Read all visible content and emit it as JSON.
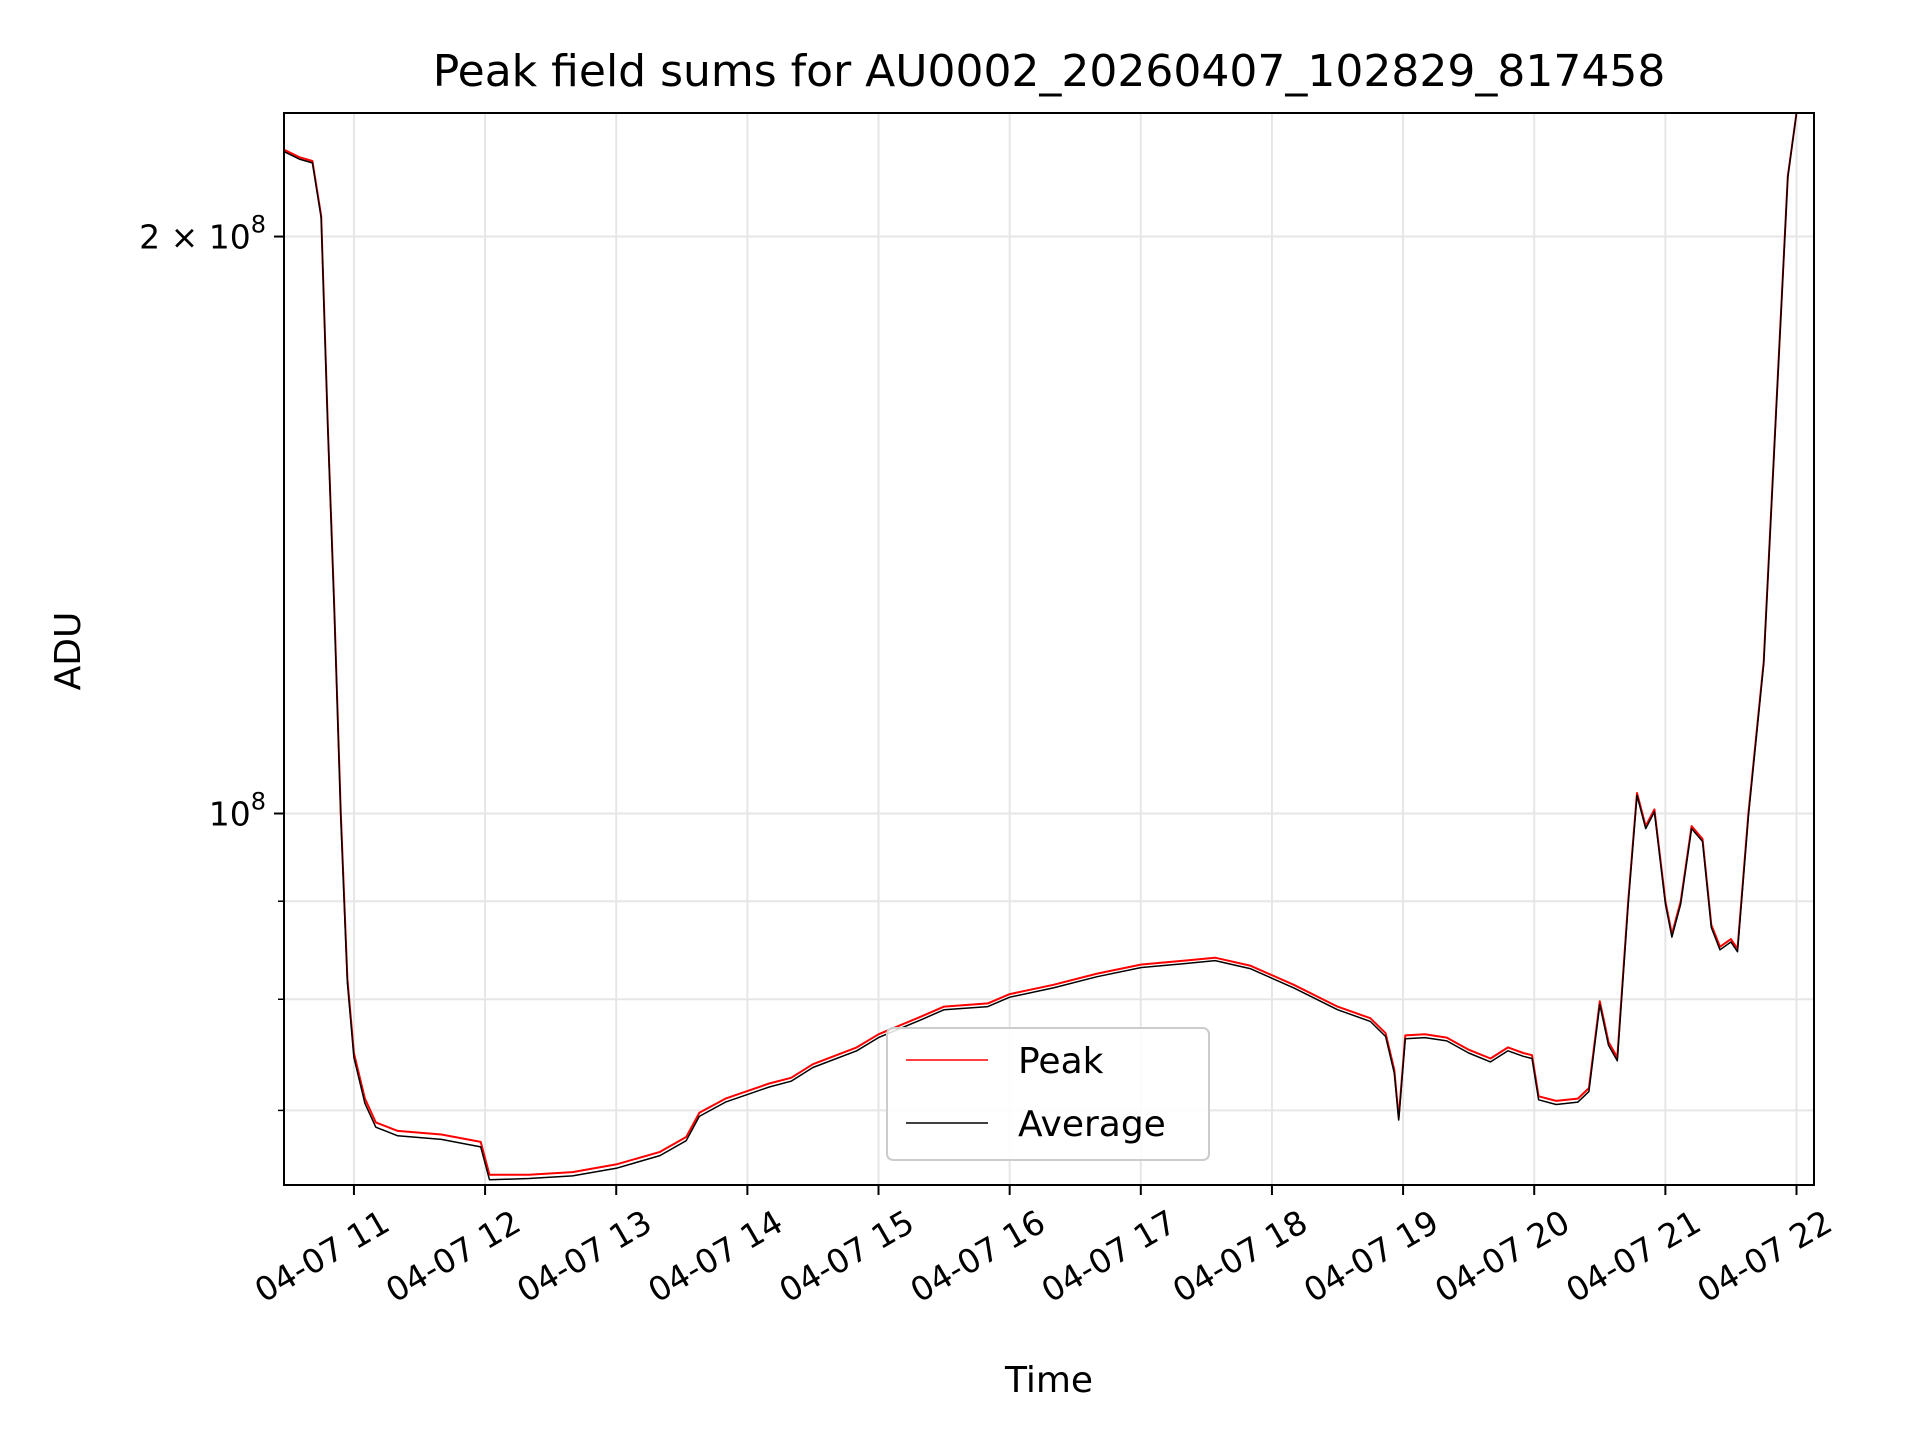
{
  "chart_data": {
    "type": "line",
    "title": "Peak field sums for AU0002_20260407_102829_817458",
    "xlabel": "Time",
    "ylabel": "ADU",
    "y_scale": "log",
    "grid": true,
    "legend_placement": "lower-center",
    "xlim": [
      "2026-04-07 10:28",
      "2026-04-07 22:08"
    ],
    "ylim": [
      64000000,
      232000000
    ],
    "x_ticks": [
      {
        "value": "2026-04-07 11:00",
        "label": "04-07 11"
      },
      {
        "value": "2026-04-07 12:00",
        "label": "04-07 12"
      },
      {
        "value": "2026-04-07 13:00",
        "label": "04-07 13"
      },
      {
        "value": "2026-04-07 14:00",
        "label": "04-07 14"
      },
      {
        "value": "2026-04-07 15:00",
        "label": "04-07 15"
      },
      {
        "value": "2026-04-07 16:00",
        "label": "04-07 16"
      },
      {
        "value": "2026-04-07 17:00",
        "label": "04-07 17"
      },
      {
        "value": "2026-04-07 18:00",
        "label": "04-07 18"
      },
      {
        "value": "2026-04-07 19:00",
        "label": "04-07 19"
      },
      {
        "value": "2026-04-07 20:00",
        "label": "04-07 20"
      },
      {
        "value": "2026-04-07 21:00",
        "label": "04-07 21"
      },
      {
        "value": "2026-04-07 22:00",
        "label": "04-07 22"
      }
    ],
    "y_major_ticks": [
      {
        "value": 100000000,
        "base": "10",
        "exp": "8",
        "mult": ""
      },
      {
        "value": 200000000,
        "base": "10",
        "exp": "8",
        "mult": "2 × "
      }
    ],
    "y_minor_ticks": [
      70000000,
      80000000,
      90000000
    ],
    "series": [
      {
        "name": "Peak",
        "color": "#ff0000",
        "points": [
          [
            "2026-04-07 10:28",
            222000000
          ],
          [
            "2026-04-07 10:35",
            220000000
          ],
          [
            "2026-04-07 10:41",
            219000000
          ],
          [
            "2026-04-07 10:45",
            205000000
          ],
          [
            "2026-04-07 10:48",
            160000000
          ],
          [
            "2026-04-07 10:51",
            128000000
          ],
          [
            "2026-04-07 10:54",
            100000000
          ],
          [
            "2026-04-07 10:57",
            82000000
          ],
          [
            "2026-04-07 11:00",
            75000000
          ],
          [
            "2026-04-07 11:05",
            71000000
          ],
          [
            "2026-04-07 11:10",
            69000000
          ],
          [
            "2026-04-07 11:20",
            68300000
          ],
          [
            "2026-04-07 11:40",
            68000000
          ],
          [
            "2026-04-07 11:58",
            67400000
          ],
          [
            "2026-04-07 12:02",
            64800000
          ],
          [
            "2026-04-07 12:20",
            64800000
          ],
          [
            "2026-04-07 12:40",
            65000000
          ],
          [
            "2026-04-07 13:00",
            65600000
          ],
          [
            "2026-04-07 13:20",
            66600000
          ],
          [
            "2026-04-07 13:32",
            67800000
          ],
          [
            "2026-04-07 13:38",
            69800000
          ],
          [
            "2026-04-07 13:50",
            71000000
          ],
          [
            "2026-04-07 14:10",
            72300000
          ],
          [
            "2026-04-07 14:20",
            72800000
          ],
          [
            "2026-04-07 14:30",
            74000000
          ],
          [
            "2026-04-07 14:50",
            75500000
          ],
          [
            "2026-04-07 15:00",
            76700000
          ],
          [
            "2026-04-07 15:20",
            78400000
          ],
          [
            "2026-04-07 15:30",
            79300000
          ],
          [
            "2026-04-07 15:50",
            79600000
          ],
          [
            "2026-04-07 16:00",
            80500000
          ],
          [
            "2026-04-07 16:20",
            81400000
          ],
          [
            "2026-04-07 16:40",
            82500000
          ],
          [
            "2026-04-07 17:00",
            83400000
          ],
          [
            "2026-04-07 17:20",
            83800000
          ],
          [
            "2026-04-07 17:34",
            84100000
          ],
          [
            "2026-04-07 17:50",
            83300000
          ],
          [
            "2026-04-07 18:10",
            81400000
          ],
          [
            "2026-04-07 18:30",
            79300000
          ],
          [
            "2026-04-07 18:45",
            78200000
          ],
          [
            "2026-04-07 18:52",
            76800000
          ],
          [
            "2026-04-07 18:56",
            73500000
          ],
          [
            "2026-04-07 18:58",
            69400000
          ],
          [
            "2026-04-07 19:01",
            76600000
          ],
          [
            "2026-04-07 19:10",
            76700000
          ],
          [
            "2026-04-07 19:20",
            76400000
          ],
          [
            "2026-04-07 19:30",
            75300000
          ],
          [
            "2026-04-07 19:40",
            74500000
          ],
          [
            "2026-04-07 19:48",
            75500000
          ],
          [
            "2026-04-07 19:55",
            75000000
          ],
          [
            "2026-04-07 19:59",
            74800000
          ],
          [
            "2026-04-07 20:02",
            71200000
          ],
          [
            "2026-04-07 20:10",
            70800000
          ],
          [
            "2026-04-07 20:20",
            71000000
          ],
          [
            "2026-04-07 20:25",
            71900000
          ],
          [
            "2026-04-07 20:30",
            79800000
          ],
          [
            "2026-04-07 20:34",
            76000000
          ],
          [
            "2026-04-07 20:38",
            74600000
          ],
          [
            "2026-04-07 20:43",
            90000000
          ],
          [
            "2026-04-07 20:47",
            102500000
          ],
          [
            "2026-04-07 20:51",
            98500000
          ],
          [
            "2026-04-07 20:55",
            100500000
          ],
          [
            "2026-04-07 21:00",
            90000000
          ],
          [
            "2026-04-07 21:03",
            86500000
          ],
          [
            "2026-04-07 21:07",
            90000000
          ],
          [
            "2026-04-07 21:12",
            98500000
          ],
          [
            "2026-04-07 21:17",
            97000000
          ],
          [
            "2026-04-07 21:21",
            87500000
          ],
          [
            "2026-04-07 21:25",
            85200000
          ],
          [
            "2026-04-07 21:30",
            86000000
          ],
          [
            "2026-04-07 21:33",
            85000000
          ],
          [
            "2026-04-07 21:38",
            100000000
          ],
          [
            "2026-04-07 21:45",
            120000000
          ],
          [
            "2026-04-07 21:51",
            165000000
          ],
          [
            "2026-04-07 21:56",
            215000000
          ],
          [
            "2026-04-07 22:00",
            232000000
          ]
        ]
      },
      {
        "name": "Average",
        "color": "#000000",
        "points": [
          [
            "2026-04-07 10:28",
            221500000
          ],
          [
            "2026-04-07 10:35",
            219500000
          ],
          [
            "2026-04-07 10:41",
            218500000
          ],
          [
            "2026-04-07 10:45",
            204500000
          ],
          [
            "2026-04-07 10:48",
            159500000
          ],
          [
            "2026-04-07 10:51",
            127500000
          ],
          [
            "2026-04-07 10:54",
            99500000
          ],
          [
            "2026-04-07 10:57",
            81600000
          ],
          [
            "2026-04-07 11:00",
            74600000
          ],
          [
            "2026-04-07 11:05",
            70600000
          ],
          [
            "2026-04-07 11:10",
            68600000
          ],
          [
            "2026-04-07 11:20",
            67900000
          ],
          [
            "2026-04-07 11:40",
            67600000
          ],
          [
            "2026-04-07 11:58",
            67000000
          ],
          [
            "2026-04-07 12:02",
            64400000
          ],
          [
            "2026-04-07 12:20",
            64500000
          ],
          [
            "2026-04-07 12:40",
            64700000
          ],
          [
            "2026-04-07 13:00",
            65300000
          ],
          [
            "2026-04-07 13:20",
            66300000
          ],
          [
            "2026-04-07 13:32",
            67500000
          ],
          [
            "2026-04-07 13:38",
            69500000
          ],
          [
            "2026-04-07 13:50",
            70700000
          ],
          [
            "2026-04-07 14:10",
            72000000
          ],
          [
            "2026-04-07 14:20",
            72500000
          ],
          [
            "2026-04-07 14:30",
            73700000
          ],
          [
            "2026-04-07 14:50",
            75200000
          ],
          [
            "2026-04-07 15:00",
            76400000
          ],
          [
            "2026-04-07 15:20",
            78100000
          ],
          [
            "2026-04-07 15:30",
            79000000
          ],
          [
            "2026-04-07 15:50",
            79300000
          ],
          [
            "2026-04-07 16:00",
            80200000
          ],
          [
            "2026-04-07 16:20",
            81100000
          ],
          [
            "2026-04-07 16:40",
            82200000
          ],
          [
            "2026-04-07 17:00",
            83100000
          ],
          [
            "2026-04-07 17:20",
            83500000
          ],
          [
            "2026-04-07 17:34",
            83800000
          ],
          [
            "2026-04-07 17:50",
            83000000
          ],
          [
            "2026-04-07 18:10",
            81100000
          ],
          [
            "2026-04-07 18:30",
            79000000
          ],
          [
            "2026-04-07 18:45",
            77900000
          ],
          [
            "2026-04-07 18:52",
            76500000
          ],
          [
            "2026-04-07 18:56",
            73200000
          ],
          [
            "2026-04-07 18:58",
            69200000
          ],
          [
            "2026-04-07 19:01",
            76300000
          ],
          [
            "2026-04-07 19:10",
            76400000
          ],
          [
            "2026-04-07 19:20",
            76100000
          ],
          [
            "2026-04-07 19:30",
            75000000
          ],
          [
            "2026-04-07 19:40",
            74200000
          ],
          [
            "2026-04-07 19:48",
            75200000
          ],
          [
            "2026-04-07 19:55",
            74700000
          ],
          [
            "2026-04-07 19:59",
            74500000
          ],
          [
            "2026-04-07 20:02",
            70900000
          ],
          [
            "2026-04-07 20:10",
            70500000
          ],
          [
            "2026-04-07 20:20",
            70700000
          ],
          [
            "2026-04-07 20:25",
            71600000
          ],
          [
            "2026-04-07 20:30",
            79500000
          ],
          [
            "2026-04-07 20:34",
            75700000
          ],
          [
            "2026-04-07 20:38",
            74300000
          ],
          [
            "2026-04-07 20:43",
            89700000
          ],
          [
            "2026-04-07 20:47",
            102200000
          ],
          [
            "2026-04-07 20:51",
            98200000
          ],
          [
            "2026-04-07 20:55",
            100200000
          ],
          [
            "2026-04-07 21:00",
            89700000
          ],
          [
            "2026-04-07 21:03",
            86200000
          ],
          [
            "2026-04-07 21:07",
            89700000
          ],
          [
            "2026-04-07 21:12",
            98200000
          ],
          [
            "2026-04-07 21:17",
            96700000
          ],
          [
            "2026-04-07 21:21",
            87200000
          ],
          [
            "2026-04-07 21:25",
            84900000
          ],
          [
            "2026-04-07 21:30",
            85700000
          ],
          [
            "2026-04-07 21:33",
            84700000
          ],
          [
            "2026-04-07 21:38",
            99700000
          ],
          [
            "2026-04-07 21:45",
            119700000
          ],
          [
            "2026-04-07 21:51",
            164700000
          ],
          [
            "2026-04-07 21:56",
            214700000
          ],
          [
            "2026-04-07 22:00",
            232000000
          ]
        ]
      }
    ]
  },
  "colors": {
    "grid": "#e6e6e6",
    "axes": "#000000",
    "legend_border": "#cccccc",
    "background": "#ffffff"
  }
}
